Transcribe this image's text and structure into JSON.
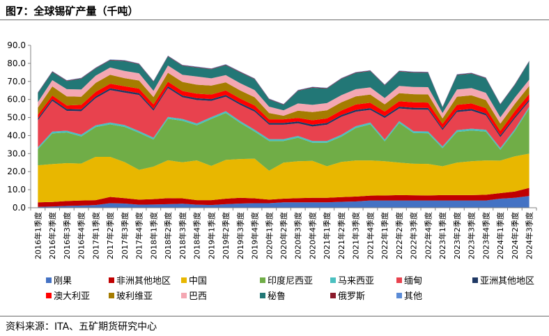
{
  "title": "图7：全球锡矿产量（千吨）",
  "source": "资料来源：ITA、五矿期货研究中心",
  "chart_data": {
    "type": "area",
    "stacked": true,
    "ylim": [
      0,
      90
    ],
    "yticks": [
      "0.0",
      "10.0",
      "20.0",
      "30.0",
      "40.0",
      "50.0",
      "60.0",
      "70.0",
      "80.0",
      "90.0"
    ],
    "grid": false,
    "legend_position": "bottom",
    "categories": [
      "2016年1季度",
      "2016年2季度",
      "2016年3季度",
      "2016年4季度",
      "2017年1季度",
      "2017年2季度",
      "2017年3季度",
      "2017年4季度",
      "2018年1季度",
      "2018年2季度",
      "2018年3季度",
      "2018年4季度",
      "2019年1季度",
      "2019年2季度",
      "2019年3季度",
      "2019年4季度",
      "2020年1季度",
      "2020年2季度",
      "2020年3季度",
      "2020年4季度",
      "2021年1季度",
      "2021年2季度",
      "2021年3季度",
      "2021年4季度",
      "2022年1季度",
      "2022年2季度",
      "2022年3季度",
      "2022年4季度",
      "2023年1季度",
      "2023年2季度",
      "2023年3季度",
      "2023年4季度",
      "2024年1季度",
      "2024年2季度",
      "2024年3季度"
    ],
    "series": [
      {
        "name": "刚果",
        "color": "#4472C4",
        "values": [
          0.5,
          0.7,
          1,
          1.2,
          1.5,
          2.5,
          2.3,
          1.7,
          1.8,
          2,
          2.2,
          1.7,
          1.5,
          2,
          2.3,
          2.5,
          2.5,
          3,
          3,
          3,
          3,
          3.3,
          3.5,
          4,
          4,
          4,
          4,
          4,
          4,
          4,
          4,
          4,
          5,
          5.5,
          6.5
        ]
      },
      {
        "name": "非洲其他地区",
        "color": "#C00000",
        "values": [
          2.5,
          2.5,
          2.7,
          2.8,
          2.7,
          3.5,
          3,
          2.8,
          3,
          3.3,
          3,
          2.5,
          2.7,
          3,
          3.2,
          2.7,
          2,
          2,
          2.3,
          2.5,
          2.5,
          2.6,
          2.7,
          2.7,
          2.8,
          3,
          2.9,
          2.8,
          3,
          3,
          3,
          3.2,
          3.1,
          3.5,
          4.5
        ]
      },
      {
        "name": "中国",
        "color": "#E8B700",
        "values": [
          20.5,
          21,
          21,
          20.5,
          24,
          22.2,
          20,
          16.5,
          18,
          21,
          20,
          22,
          19,
          21.5,
          21.5,
          22,
          16,
          20,
          20.5,
          20.5,
          17.5,
          19.5,
          20,
          19.5,
          19,
          18,
          17.5,
          17.5,
          16,
          18,
          18.8,
          19,
          18,
          19.5,
          19
        ]
      },
      {
        "name": "印度尼西亚",
        "color": "#70AD47",
        "values": [
          9,
          17,
          17,
          15,
          16.5,
          18,
          19.5,
          20.5,
          15,
          23,
          23,
          19.5,
          26,
          26,
          20,
          15,
          16.5,
          12,
          13,
          10,
          13,
          14,
          18,
          20,
          11,
          22,
          17,
          17,
          10,
          17,
          17,
          16,
          6,
          14,
          25
        ]
      },
      {
        "name": "马来西亚",
        "color": "#4BC0C0",
        "values": [
          1,
          1,
          1,
          1,
          1,
          1,
          1,
          1,
          1,
          1,
          1,
          1,
          1,
          1,
          1,
          1,
          1,
          1,
          1,
          1,
          1,
          1,
          1,
          1,
          1,
          1,
          1,
          1,
          1,
          1,
          1,
          1,
          1,
          1,
          1
        ]
      },
      {
        "name": "缅甸",
        "color": "#E8424E",
        "values": [
          15,
          17,
          11,
          13,
          15,
          18,
          18,
          20,
          15,
          16,
          12,
          13,
          9,
          8,
          9,
          10,
          8,
          8,
          7,
          8,
          9,
          10,
          8,
          7,
          12,
          7,
          12,
          12,
          9,
          10,
          10,
          8,
          6,
          6,
          3
        ]
      },
      {
        "name": "亚洲其他地区",
        "color": "#1F3864",
        "values": [
          1,
          1,
          1,
          1,
          1,
          1,
          1,
          1,
          1,
          1,
          1,
          1,
          1,
          1,
          1,
          1,
          1,
          1,
          1,
          1,
          1,
          1,
          1,
          1,
          1,
          1,
          1,
          1,
          1,
          1,
          1,
          1,
          1,
          1,
          1
        ]
      },
      {
        "name": "澳大利亚",
        "color": "#FF0000",
        "values": [
          2,
          2,
          2,
          2.5,
          2.5,
          2.5,
          2.5,
          2.5,
          2.5,
          2.5,
          2.5,
          2.5,
          2.5,
          2.5,
          2.5,
          2.5,
          2,
          2,
          2,
          2.5,
          2.5,
          2.5,
          3,
          3,
          2.5,
          3,
          3,
          3,
          2.5,
          3,
          3,
          3,
          2.5,
          3,
          3
        ]
      },
      {
        "name": "玻利维亚",
        "color": "#A57C00",
        "values": [
          4,
          5,
          5,
          4.5,
          5,
          5,
          4.5,
          4.5,
          4,
          5,
          5,
          5,
          5,
          4.5,
          4.5,
          4.5,
          3.5,
          2,
          4,
          4.5,
          4.5,
          4.5,
          4.5,
          4.5,
          4,
          4.5,
          4.5,
          4.5,
          3,
          4.5,
          4.5,
          4.5,
          4,
          4,
          4.5
        ]
      },
      {
        "name": "巴西",
        "color": "#F4A7B2",
        "values": [
          3,
          3.5,
          4,
          4,
          4,
          4,
          4,
          4,
          3.5,
          4,
          4,
          4.5,
          4,
          4,
          4,
          4,
          3.5,
          3,
          4,
          4,
          4,
          4,
          4,
          4,
          3.5,
          4,
          4,
          4,
          3,
          4,
          4,
          4,
          3.5,
          3.5,
          3.5
        ]
      },
      {
        "name": "秘鲁",
        "color": "#227776",
        "values": [
          5,
          4.5,
          4.5,
          6,
          4,
          4,
          5.5,
          5,
          5,
          5,
          5,
          5,
          5,
          5.5,
          6,
          6,
          4,
          3,
          7,
          9.5,
          8,
          9,
          9,
          9,
          7,
          8,
          8,
          8,
          3,
          8,
          8,
          8,
          7,
          7,
          10
        ]
      },
      {
        "name": "俄罗斯",
        "color": "#8B1A2B",
        "values": [
          0.3,
          0.3,
          0.3,
          0.3,
          0.3,
          0.3,
          0.3,
          0.3,
          0.3,
          0.3,
          0.3,
          0.3,
          0.3,
          0.3,
          0.3,
          0.3,
          0.3,
          0.3,
          0.3,
          0.3,
          0.3,
          0.3,
          0.3,
          0.3,
          0.3,
          0.3,
          0.3,
          0.3,
          0.3,
          0.3,
          0.3,
          0.3,
          0.3,
          0.3,
          0.3
        ]
      },
      {
        "name": "其他",
        "color": "#5B8BD6",
        "values": [
          0.2,
          0.2,
          0.2,
          0.2,
          0.2,
          0.2,
          0.2,
          0.2,
          0.2,
          0.2,
          0.2,
          0.2,
          0.2,
          0.2,
          0.2,
          0.2,
          0.2,
          0.2,
          0.2,
          0.2,
          0.2,
          0.2,
          0.2,
          0.2,
          0.2,
          0.2,
          0.2,
          0.2,
          0.2,
          0.2,
          0.2,
          0.2,
          0.2,
          0.2,
          0.2
        ]
      }
    ]
  }
}
